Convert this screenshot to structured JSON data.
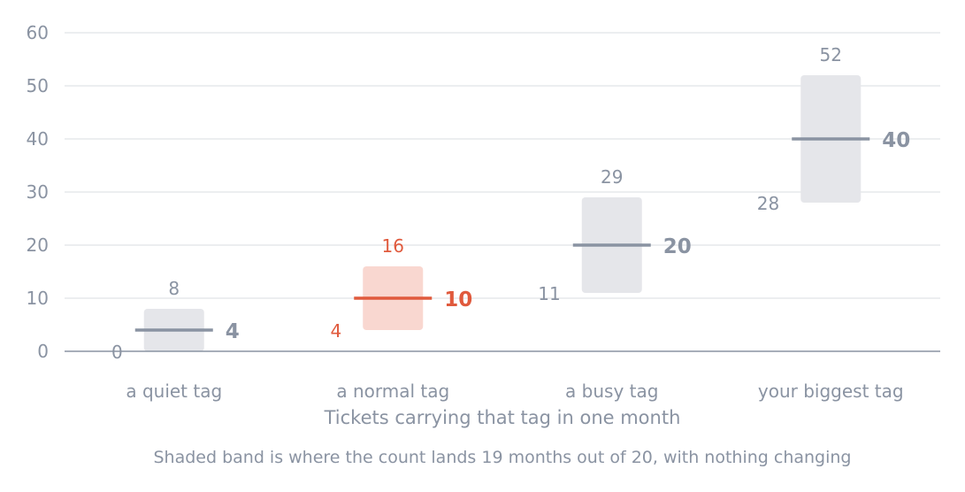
{
  "chart_data": {
    "type": "bar",
    "chart_form": "range-band with median line",
    "categories": [
      "a quiet tag",
      "a normal tag",
      "a busy tag",
      "your biggest tag"
    ],
    "series": [
      {
        "values": [
          4,
          10,
          20,
          40
        ],
        "low": [
          0,
          4,
          11,
          28
        ],
        "high": [
          8,
          16,
          29,
          52
        ]
      }
    ],
    "highlight_index": 1,
    "xlabel": "Tickets carrying that tag in one month",
    "ylabel": "",
    "ylim": [
      0,
      60
    ],
    "yticks": [
      0,
      10,
      20,
      30,
      40,
      50,
      60
    ],
    "grid": true,
    "legend": "none",
    "footnote": "Shaded band is where the count lands 19 months out of 20, with nothing changing",
    "colors": {
      "text": "#8a93a2",
      "gridline": "#e6e8eb",
      "axis": "#8a93a2",
      "band": "#e5e6ea",
      "line": "#8a93a2",
      "highlight_band": "#f9d7d0",
      "highlight": "#e05a3d"
    }
  }
}
